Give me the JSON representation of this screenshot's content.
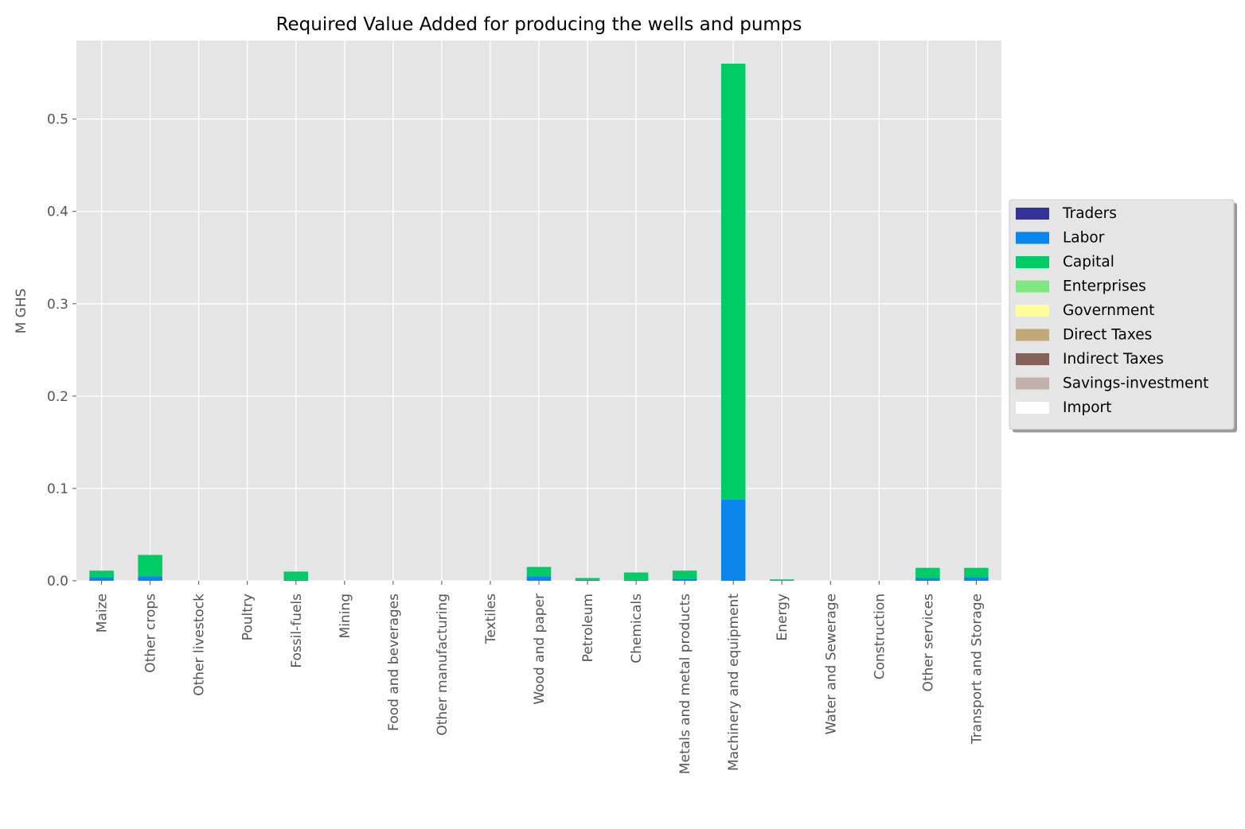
{
  "chart_data": {
    "type": "bar",
    "stacked": true,
    "title": "Required Value Added for producing the wells and pumps",
    "xlabel": "",
    "ylabel": "M GHS",
    "ylim": [
      0,
      0.585
    ],
    "yticks": [
      "0.0",
      "0.1",
      "0.2",
      "0.3",
      "0.4",
      "0.5"
    ],
    "ytick_values": [
      0,
      0.1,
      0.2,
      0.3,
      0.4,
      0.5
    ],
    "grid": true,
    "legend_position": "right",
    "categories": [
      "Maize",
      "Other crops",
      "Other livestock",
      "Poultry",
      "Fossil-fuels",
      "Mining",
      "Food and beverages",
      "Other manufacturing",
      "Textiles",
      "Wood and paper",
      "Petroleum",
      "Chemicals",
      "Metals and metal products",
      "Machinery and equipment",
      "Energy",
      "Water and Sewerage",
      "Construction",
      "Other services",
      "Transport and Storage"
    ],
    "series": [
      {
        "name": "Traders",
        "color": "#333399",
        "values": [
          0,
          0,
          0,
          0,
          0,
          0,
          0,
          0,
          0,
          0,
          0,
          0,
          0,
          0,
          0,
          0,
          0,
          0,
          0
        ]
      },
      {
        "name": "Labor",
        "color": "#0a85ec",
        "values": [
          0.004,
          0.005,
          0,
          0,
          0.001,
          0,
          0,
          0,
          0,
          0.005,
          0.001,
          0.001,
          0.002,
          0.088,
          0.0005,
          0,
          0,
          0.003,
          0.004
        ]
      },
      {
        "name": "Capital",
        "color": "#00cc66",
        "values": [
          0.007,
          0.023,
          0,
          0,
          0.009,
          0,
          0,
          0,
          0,
          0.01,
          0.002,
          0.008,
          0.009,
          0.472,
          0.001,
          0,
          0,
          0.011,
          0.01
        ]
      },
      {
        "name": "Enterprises",
        "color": "#80e680",
        "values": [
          0,
          0,
          0,
          0,
          0,
          0,
          0,
          0,
          0,
          0,
          0,
          0,
          0,
          0,
          0,
          0,
          0,
          0,
          0
        ]
      },
      {
        "name": "Government",
        "color": "#ffff99",
        "values": [
          0,
          0,
          0,
          0,
          0,
          0,
          0,
          0,
          0,
          0,
          0,
          0,
          0,
          0,
          0,
          0,
          0,
          0,
          0
        ]
      },
      {
        "name": "Direct Taxes",
        "color": "#c2a878",
        "values": [
          0,
          0,
          0,
          0,
          0,
          0,
          0,
          0,
          0,
          0,
          0,
          0,
          0,
          0,
          0,
          0,
          0,
          0,
          0
        ]
      },
      {
        "name": "Indirect Taxes",
        "color": "#84615a",
        "values": [
          0,
          0,
          0,
          0,
          0,
          0,
          0,
          0,
          0,
          0,
          0,
          0,
          0,
          0,
          0,
          0,
          0,
          0,
          0
        ]
      },
      {
        "name": "Savings-investment",
        "color": "#c2b0aa",
        "values": [
          0,
          0,
          0,
          0,
          0,
          0,
          0,
          0,
          0,
          0,
          0,
          0,
          0,
          0,
          0,
          0,
          0,
          0,
          0
        ]
      },
      {
        "name": "Import",
        "color": "#ffffff",
        "values": [
          0,
          0,
          0,
          0,
          0,
          0,
          0,
          0,
          0,
          0,
          0,
          0,
          0,
          0,
          0,
          0,
          0,
          0,
          0
        ]
      }
    ]
  }
}
